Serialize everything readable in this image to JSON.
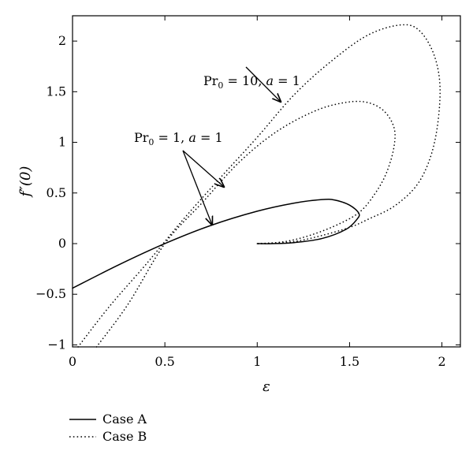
{
  "chart_data": {
    "type": "line",
    "title": "",
    "xlabel": "ε",
    "ylabel": "f″(0)",
    "xlim": [
      0,
      2.1
    ],
    "ylim": [
      -1.02,
      2.25
    ],
    "x_ticks": [
      0,
      0.5,
      1,
      1.5,
      2
    ],
    "x_tick_labels": [
      "0",
      "0.5",
      "1",
      "1.5",
      "2"
    ],
    "y_ticks": [
      -1,
      -0.5,
      0,
      0.5,
      1,
      1.5,
      2
    ],
    "y_tick_labels": [
      "−1",
      "−0.5",
      "0",
      "0.5",
      "1",
      "1.5",
      "2"
    ],
    "grid": false,
    "legend_position": "below",
    "series": [
      {
        "name": "Case A",
        "style": "solid",
        "points": [
          [
            0,
            -0.44
          ],
          [
            0.25,
            -0.21
          ],
          [
            0.5,
            0.0
          ],
          [
            0.75,
            0.18
          ],
          [
            1.0,
            0.32
          ],
          [
            1.2,
            0.4
          ],
          [
            1.35,
            0.435
          ],
          [
            1.42,
            0.43
          ],
          [
            1.5,
            0.38
          ],
          [
            1.55,
            0.3
          ],
          [
            1.54,
            0.24
          ],
          [
            1.48,
            0.14
          ],
          [
            1.35,
            0.05
          ],
          [
            1.2,
            0.01
          ],
          [
            1.08,
            0.0
          ],
          [
            1.0,
            0.0
          ]
        ]
      },
      {
        "name": "Case B",
        "style": "dotted",
        "sub_label": "Pr0 = 10, a = 1",
        "points": [
          [
            0.03,
            -1.02
          ],
          [
            0.2,
            -0.62
          ],
          [
            0.4,
            -0.2
          ],
          [
            0.6,
            0.24
          ],
          [
            0.8,
            0.65
          ],
          [
            1.0,
            1.05
          ],
          [
            1.2,
            1.47
          ],
          [
            1.4,
            1.8
          ],
          [
            1.6,
            2.06
          ],
          [
            1.78,
            2.16
          ],
          [
            1.88,
            2.1
          ],
          [
            1.96,
            1.85
          ],
          [
            1.99,
            1.5
          ],
          [
            1.96,
            1.0
          ],
          [
            1.88,
            0.62
          ],
          [
            1.75,
            0.38
          ],
          [
            1.6,
            0.24
          ],
          [
            1.5,
            0.16
          ],
          [
            1.35,
            0.08
          ],
          [
            1.2,
            0.02
          ],
          [
            1.05,
            0.0
          ],
          [
            1.0,
            0.0
          ]
        ]
      },
      {
        "name": "Case B",
        "style": "dotted",
        "sub_label": "Pr0 = 1, a = 1",
        "points": [
          [
            0.13,
            -1.02
          ],
          [
            0.3,
            -0.6
          ],
          [
            0.5,
            0.0
          ],
          [
            0.7,
            0.4
          ],
          [
            0.9,
            0.8
          ],
          [
            1.1,
            1.1
          ],
          [
            1.3,
            1.3
          ],
          [
            1.45,
            1.385
          ],
          [
            1.58,
            1.4
          ],
          [
            1.68,
            1.32
          ],
          [
            1.74,
            1.15
          ],
          [
            1.74,
            0.95
          ],
          [
            1.7,
            0.7
          ],
          [
            1.64,
            0.5
          ],
          [
            1.56,
            0.32
          ],
          [
            1.45,
            0.2
          ],
          [
            1.3,
            0.09
          ],
          [
            1.15,
            0.02
          ],
          [
            1.0,
            0.0
          ]
        ]
      }
    ],
    "annotations": [
      {
        "text": "Pr₀ = 10, a = 1"
      },
      {
        "text": "Pr₀ = 1, a = 1"
      }
    ],
    "legend": [
      {
        "label": "Case A",
        "style": "solid"
      },
      {
        "label": "Case B",
        "style": "dotted"
      }
    ]
  }
}
